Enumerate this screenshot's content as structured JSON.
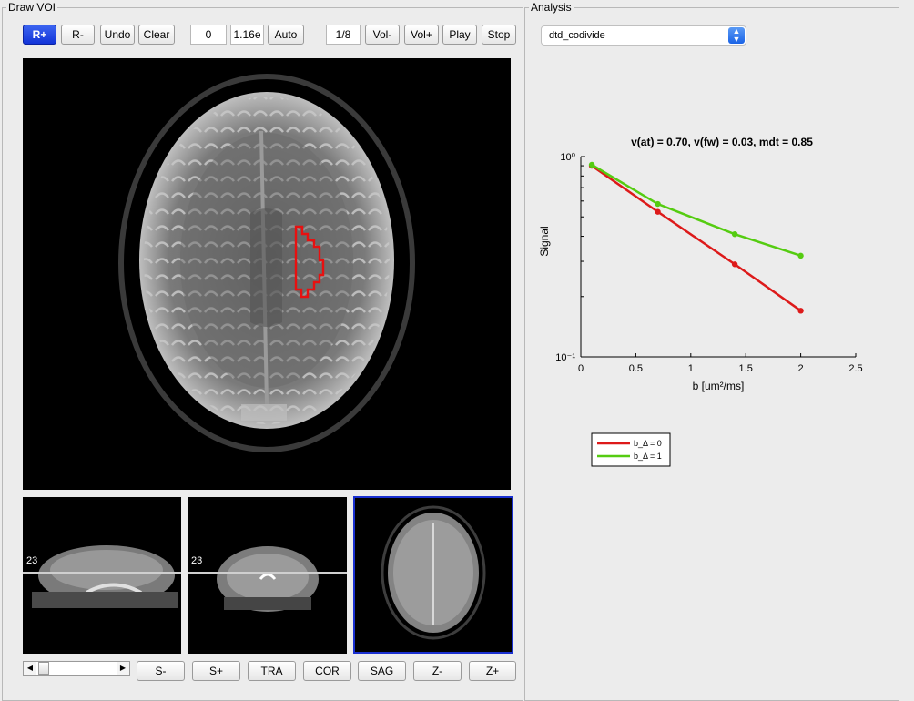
{
  "draw_voi": {
    "title": "Draw VOI",
    "toolbar": {
      "r_plus": "R+",
      "r_minus": "R-",
      "undo": "Undo",
      "clear": "Clear",
      "min_value": "0",
      "max_value": "1.16e",
      "auto": "Auto",
      "volume": "1/8",
      "vol_minus": "Vol-",
      "vol_plus": "Vol+",
      "play": "Play",
      "stop": "Stop"
    },
    "sagittal_slice": "23",
    "coronal_slice": "23",
    "bottom": {
      "s_minus": "S-",
      "s_plus": "S+",
      "tra": "TRA",
      "cor": "COR",
      "sag": "SAG",
      "z_minus": "Z-",
      "z_plus": "Z+"
    },
    "slider_position": 0.05,
    "colors": {
      "roi": "#e81010",
      "active_view_border": "#1a30d0",
      "active_button": "#1f3fe0"
    }
  },
  "analysis": {
    "title": "Analysis",
    "method": "dtd_codivide"
  },
  "chart_data": {
    "type": "line",
    "title": "v(at) = 0.70, v(fw) = 0.03, mdt = 0.85",
    "xlabel": "b [um²/ms]",
    "ylabel": "Signal",
    "xlim": [
      0,
      2.5
    ],
    "ylim": [
      0.1,
      1
    ],
    "yscale": "log",
    "x_ticks": [
      "0",
      "0.5",
      "1",
      "1.5",
      "2",
      "2.5"
    ],
    "y_ticks": [
      "10⁻¹",
      "10⁰"
    ],
    "legend_position": "below",
    "series": [
      {
        "name": "b_Δ = 0",
        "color": "#dd1a1a",
        "x": [
          0.1,
          0.7,
          1.4,
          2.0
        ],
        "y": [
          0.9,
          0.53,
          0.29,
          0.17
        ]
      },
      {
        "name": "b_Δ = 1",
        "color": "#55cc11",
        "x": [
          0.1,
          0.7,
          1.4,
          2.0
        ],
        "y": [
          0.91,
          0.58,
          0.41,
          0.32
        ]
      }
    ]
  }
}
